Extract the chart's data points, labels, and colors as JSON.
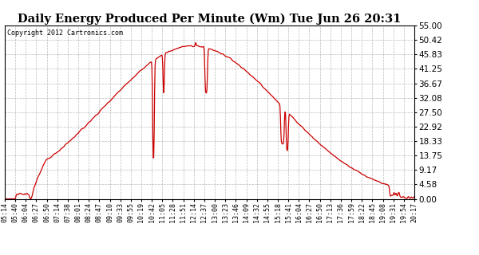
{
  "title": "Daily Energy Produced Per Minute (Wm) Tue Jun 26 20:31",
  "copyright": "Copyright 2012 Cartronics.com",
  "line_color": "#cc0000",
  "bg_color": "#ffffff",
  "grid_color": "#aaaaaa",
  "yticks": [
    0.0,
    4.58,
    9.17,
    13.75,
    18.33,
    22.92,
    27.5,
    32.08,
    36.67,
    41.25,
    45.83,
    50.42,
    55.0
  ],
  "ymax": 55.0,
  "ymin": 0.0,
  "xtick_labels": [
    "05:14",
    "05:40",
    "06:04",
    "06:27",
    "06:50",
    "07:14",
    "07:38",
    "08:01",
    "08:24",
    "08:47",
    "09:10",
    "09:33",
    "09:55",
    "10:19",
    "10:42",
    "11:05",
    "11:28",
    "11:51",
    "12:14",
    "12:37",
    "13:00",
    "13:23",
    "13:46",
    "14:09",
    "14:32",
    "14:55",
    "15:18",
    "15:41",
    "16:04",
    "16:27",
    "16:50",
    "17:13",
    "17:36",
    "17:59",
    "18:22",
    "18:45",
    "19:08",
    "19:31",
    "19:54",
    "20:17"
  ],
  "peak_value": 48.5,
  "peak_t": 415,
  "sigma": 195,
  "n_points": 903,
  "sunrise_t": 60,
  "sunset_t": 855
}
